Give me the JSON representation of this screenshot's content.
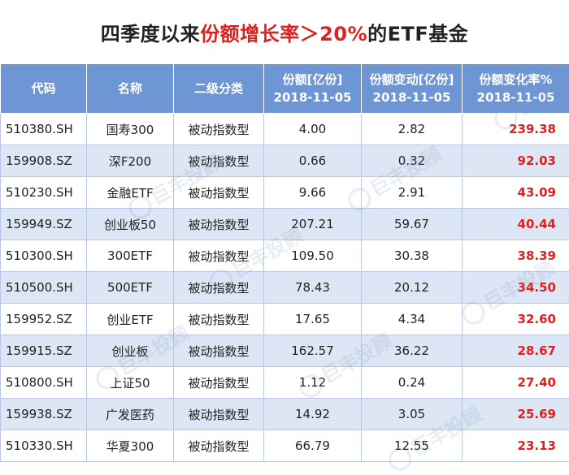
{
  "title": {
    "prefix": "四季度以来",
    "highlight": "份额增长率＞20%",
    "suffix": "的ETF基金"
  },
  "headers": {
    "code": "代码",
    "name": "名称",
    "category": "二级分类",
    "shares_line1": "份额[亿份]",
    "shares_line2": "2018-11-05",
    "change_line1": "份额变动[亿份]",
    "change_line2": "2018-11-05",
    "rate_line1": "份额变化率%",
    "rate_line2": "2018-11-05"
  },
  "rows": [
    {
      "code": "510380.SH",
      "name": "国寿300",
      "category": "被动指数型",
      "shares": "4.00",
      "change": "2.82",
      "rate": "239.38"
    },
    {
      "code": "159908.SZ",
      "name": "深F200",
      "category": "被动指数型",
      "shares": "0.66",
      "change": "0.32",
      "rate": "92.03"
    },
    {
      "code": "510230.SH",
      "name": "金融ETF",
      "category": "被动指数型",
      "shares": "9.66",
      "change": "2.91",
      "rate": "43.09"
    },
    {
      "code": "159949.SZ",
      "name": "创业板50",
      "category": "被动指数型",
      "shares": "207.21",
      "change": "59.67",
      "rate": "40.44"
    },
    {
      "code": "510300.SH",
      "name": "300ETF",
      "category": "被动指数型",
      "shares": "109.50",
      "change": "30.38",
      "rate": "38.39"
    },
    {
      "code": "510500.SH",
      "name": "500ETF",
      "category": "被动指数型",
      "shares": "78.43",
      "change": "20.12",
      "rate": "34.50"
    },
    {
      "code": "159952.SZ",
      "name": "创业ETF",
      "category": "被动指数型",
      "shares": "17.65",
      "change": "4.34",
      "rate": "32.60"
    },
    {
      "code": "159915.SZ",
      "name": "创业板",
      "category": "被动指数型",
      "shares": "162.57",
      "change": "36.22",
      "rate": "28.67"
    },
    {
      "code": "510800.SH",
      "name": "上证50",
      "category": "被动指数型",
      "shares": "1.12",
      "change": "0.24",
      "rate": "27.40"
    },
    {
      "code": "159938.SZ",
      "name": "广发医药",
      "category": "被动指数型",
      "shares": "14.92",
      "change": "3.05",
      "rate": "25.69"
    },
    {
      "code": "510330.SH",
      "name": "华夏300",
      "category": "被动指数型",
      "shares": "66.79",
      "change": "12.55",
      "rate": "23.13"
    }
  ],
  "watermark": "巨丰投顾",
  "colors": {
    "header_bg": "#6f96d4",
    "stripe": "#dce6f5",
    "highlight": "#e02020"
  }
}
